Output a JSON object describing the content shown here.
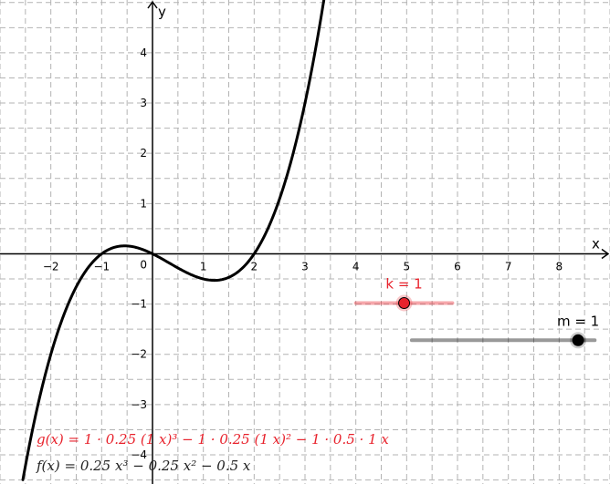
{
  "chart_data": {
    "type": "line",
    "xlabel": "x",
    "ylabel": "y",
    "xlim": [
      -3.0,
      9.0
    ],
    "ylim": [
      -4.58,
      5.05
    ],
    "grid": true,
    "x_ticks": [
      -2,
      -1,
      1,
      2,
      3,
      4,
      5,
      6,
      7,
      8
    ],
    "y_ticks": [
      -4,
      -3,
      -2,
      -1,
      1,
      2,
      3,
      4
    ],
    "origin_label": "0",
    "series": [
      {
        "name": "g",
        "color": "#000000",
        "coefficients": {
          "a3": 0.25,
          "a2": -0.25,
          "a1": -0.5,
          "a0": 0
        },
        "x_range": [
          -2.55,
          3.45
        ]
      }
    ],
    "sliders": [
      {
        "label": "k = 1",
        "value": 1,
        "min": 0,
        "max": 2,
        "color": "#e8222c"
      },
      {
        "label": "m = 1",
        "value": 1,
        "min": -4,
        "max": 1.5,
        "color": "#000000"
      }
    ],
    "formulas": {
      "g": "g(x) = 1 · 0.25 (1 x)³ − 1 · 0.25 (1 x)² − 1 · 0.5 · 1 x",
      "f": "f(x) = 0.25 x³ − 0.25 x² − 0.5 x"
    }
  }
}
